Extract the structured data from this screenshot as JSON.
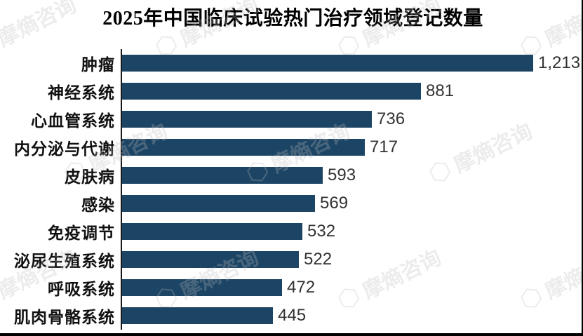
{
  "title": "2025年中国临床试验热门治疗领域登记数量",
  "watermark": {
    "text": "摩熵咨询",
    "logo_icon": "hexagon"
  },
  "colors": {
    "bar": "#1C4565",
    "value_label": "#333333",
    "axis": "#1a1a1a",
    "border": "#000000",
    "watermark": "#bcbcbc"
  },
  "chart_data": {
    "type": "bar",
    "orientation": "horizontal",
    "title": "2025年中国临床试验热门治疗领域登记数量",
    "categories": [
      "肿瘤",
      "神经系统",
      "心血管系统",
      "内分泌与代谢",
      "皮肤病",
      "感染",
      "免疫调节",
      "泌尿生殖系统",
      "呼吸系统",
      "肌肉骨骼系统"
    ],
    "values": [
      1213,
      881,
      736,
      717,
      593,
      569,
      532,
      522,
      472,
      445
    ],
    "value_labels": [
      "1,213",
      "881",
      "736",
      "717",
      "593",
      "569",
      "532",
      "522",
      "472",
      "445"
    ],
    "xlabel": "",
    "ylabel": "",
    "xlim": [
      0,
      1250
    ],
    "grid": false,
    "legend": null,
    "data_labels": "outside-end",
    "bar_color": "#1C4565"
  }
}
